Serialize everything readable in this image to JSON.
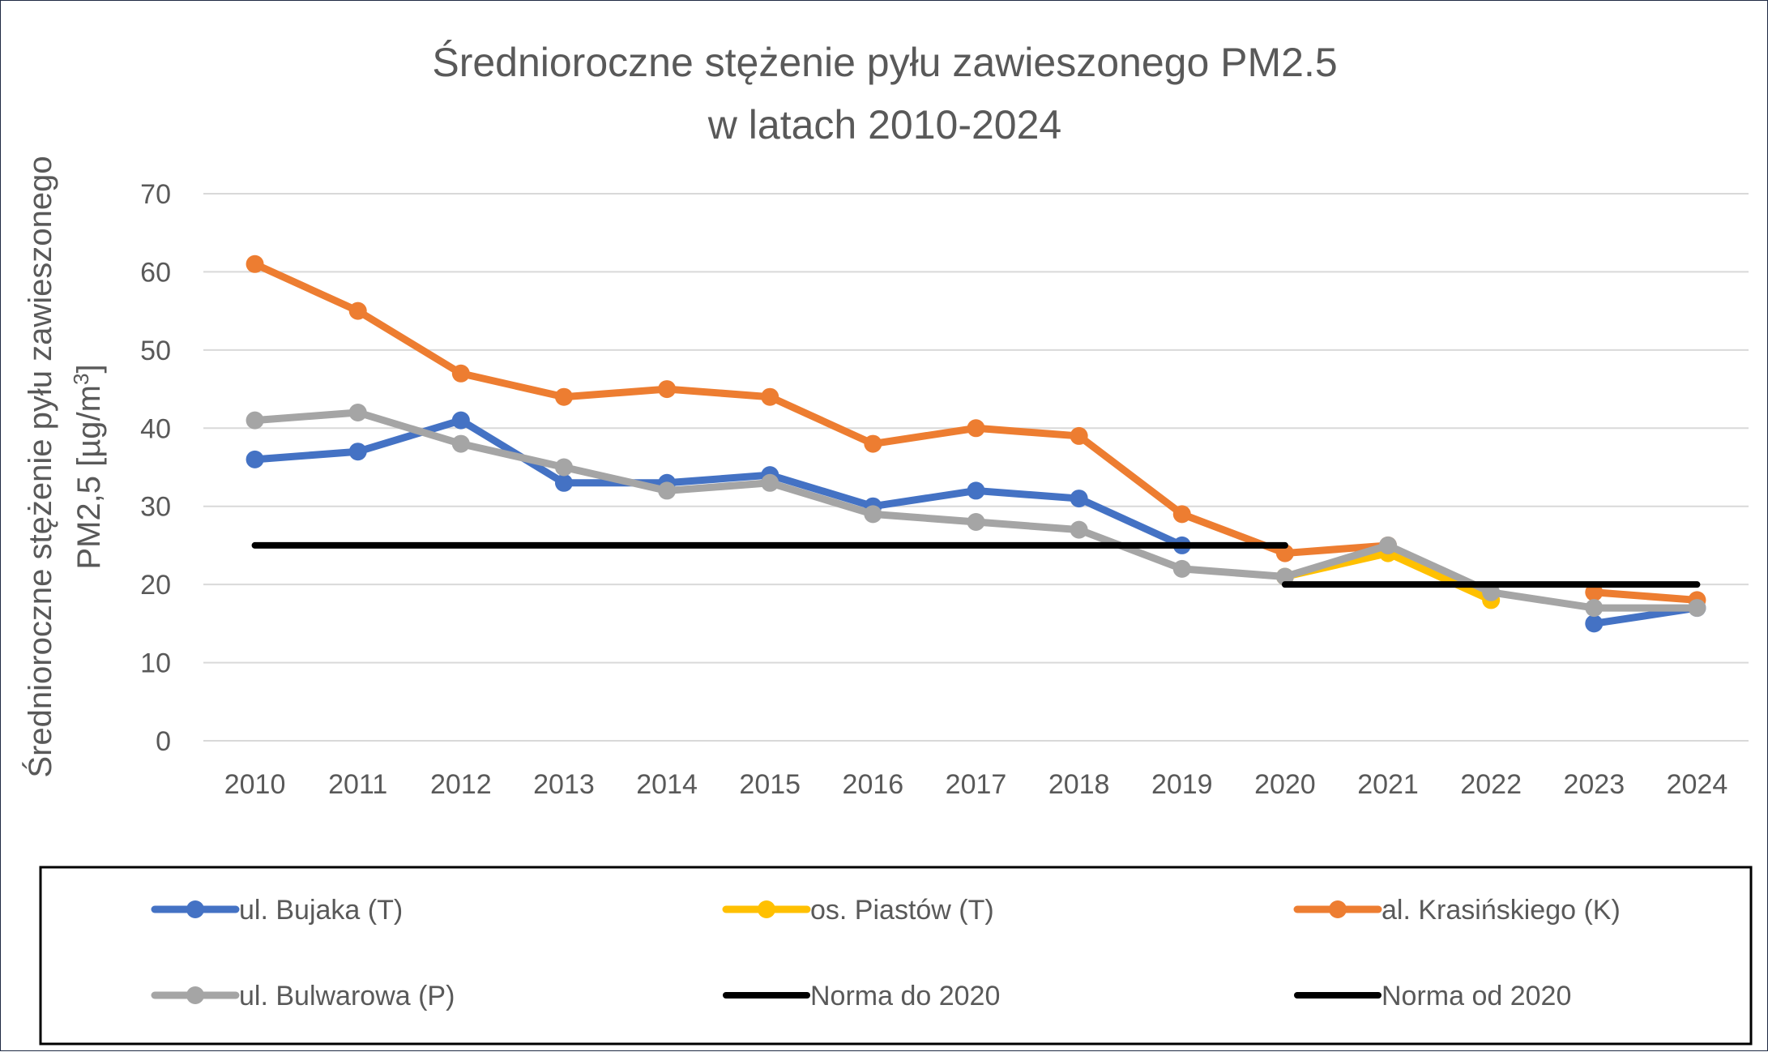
{
  "chart_data": {
    "type": "line",
    "title": [
      "Średnioroczne stężenie pyłu zawieszonego PM2.5",
      "w latach 2010-2024"
    ],
    "ylabel": [
      "Średnioroczne stężenie pyłu zawieszonego",
      "PM2,5 [µg/m",
      "3",
      "]"
    ],
    "xlabel": "",
    "ylim": [
      0,
      70
    ],
    "yticks": [
      0,
      10,
      20,
      30,
      40,
      50,
      60,
      70
    ],
    "grid": true,
    "legend_position": "bottom",
    "categories": [
      "2010",
      "2011",
      "2012",
      "2013",
      "2014",
      "2015",
      "2016",
      "2017",
      "2018",
      "2019",
      "2020",
      "2021",
      "2022",
      "2023",
      "2024"
    ],
    "series": [
      {
        "name": "ul. Bujaka (T)",
        "color": "#4472C4",
        "values": [
          36,
          37,
          41,
          33,
          33,
          34,
          30,
          32,
          31,
          25,
          null,
          null,
          null,
          15,
          17
        ]
      },
      {
        "name": "os. Piastów (T)",
        "color": "#FFC000",
        "values": [
          null,
          null,
          null,
          null,
          null,
          null,
          null,
          null,
          null,
          null,
          21,
          24,
          18,
          null,
          null
        ]
      },
      {
        "name": "al. Krasińskiego (K)",
        "color": "#ED7D31",
        "values": [
          61,
          55,
          47,
          44,
          45,
          44,
          38,
          40,
          39,
          29,
          24,
          25,
          null,
          19,
          18
        ]
      },
      {
        "name": "ul. Bulwarowa (P)",
        "color": "#A5A5A5",
        "values": [
          41,
          42,
          38,
          35,
          32,
          33,
          29,
          28,
          27,
          22,
          21,
          25,
          19,
          17,
          17
        ]
      },
      {
        "name": "Norma do 2020",
        "color": "#000000",
        "values": [
          25,
          25,
          25,
          25,
          25,
          25,
          25,
          25,
          25,
          25,
          25,
          null,
          null,
          null,
          null
        ],
        "markers": false
      },
      {
        "name": "Norma od 2020",
        "color": "#000000",
        "values": [
          null,
          null,
          null,
          null,
          null,
          null,
          null,
          null,
          null,
          null,
          20,
          20,
          20,
          20,
          20
        ],
        "markers": false
      }
    ]
  }
}
